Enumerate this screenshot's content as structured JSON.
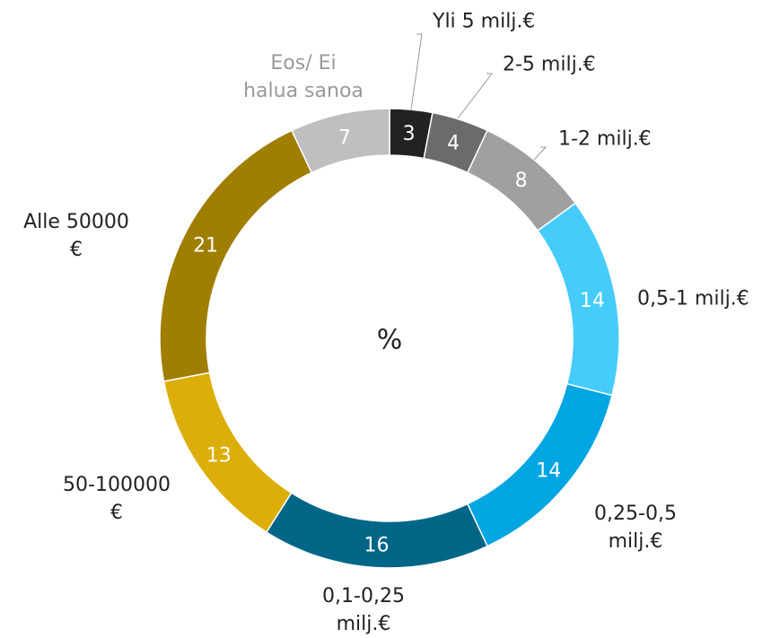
{
  "chart_data": {
    "type": "donut",
    "center_label": "%",
    "categories": [
      "Yli 5 milj.€",
      "2-5 milj.€",
      "1-2 milj.€",
      "0,5-1 milj.€",
      "0,25-0,5\nmilj.€",
      "0,1-0,25\nmilj.€",
      "50-100000\n€",
      "Alle 50000\n€",
      "Eos/ Ei\nhalua sanoa"
    ],
    "values": [
      3,
      4,
      8,
      14,
      14,
      16,
      13,
      21,
      7
    ],
    "colors": [
      "#222222",
      "#6b6b6b",
      "#a0a0a0",
      "#45ccfb",
      "#00a6e2",
      "#006688",
      "#dcae09",
      "#a07e00",
      "#bfbfbf"
    ]
  }
}
